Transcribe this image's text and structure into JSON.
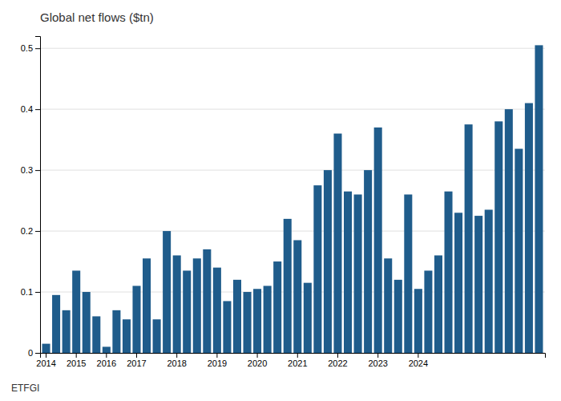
{
  "chart_data": {
    "type": "bar",
    "title": "Global net flows ($tn)",
    "source": "ETFGI",
    "categories": [
      "2014",
      null,
      null,
      "2015",
      null,
      null,
      "2016",
      null,
      null,
      "2017",
      null,
      null,
      null,
      "2018",
      null,
      null,
      null,
      "2019",
      null,
      null,
      null,
      "2020",
      null,
      null,
      null,
      "2021",
      null,
      null,
      null,
      "2022",
      null,
      null,
      null,
      "2023",
      null,
      null,
      null,
      "2024",
      null,
      null,
      null,
      null,
      null,
      null,
      null,
      null,
      null,
      null,
      null,
      null
    ],
    "values": [
      0.015,
      0.095,
      0.07,
      0.135,
      0.1,
      0.06,
      0.01,
      0.07,
      0.055,
      0.11,
      0.155,
      0.055,
      0.2,
      0.16,
      0.135,
      0.155,
      0.17,
      0.14,
      0.085,
      0.12,
      0.1,
      0.105,
      0.11,
      0.15,
      0.22,
      0.185,
      0.115,
      0.275,
      0.3,
      0.36,
      0.265,
      0.26,
      0.3,
      0.37,
      0.155,
      0.12,
      0.26,
      0.105,
      0.135,
      0.16,
      0.265,
      0.23,
      0.375,
      0.225,
      0.235,
      0.38,
      0.4,
      0.335,
      0.41,
      0.505
    ],
    "color": "#1f5c8b",
    "ylim": [
      0,
      0.52
    ],
    "yticks": [
      0,
      0.1,
      0.2,
      0.3,
      0.4,
      0.5
    ],
    "grid": true
  }
}
